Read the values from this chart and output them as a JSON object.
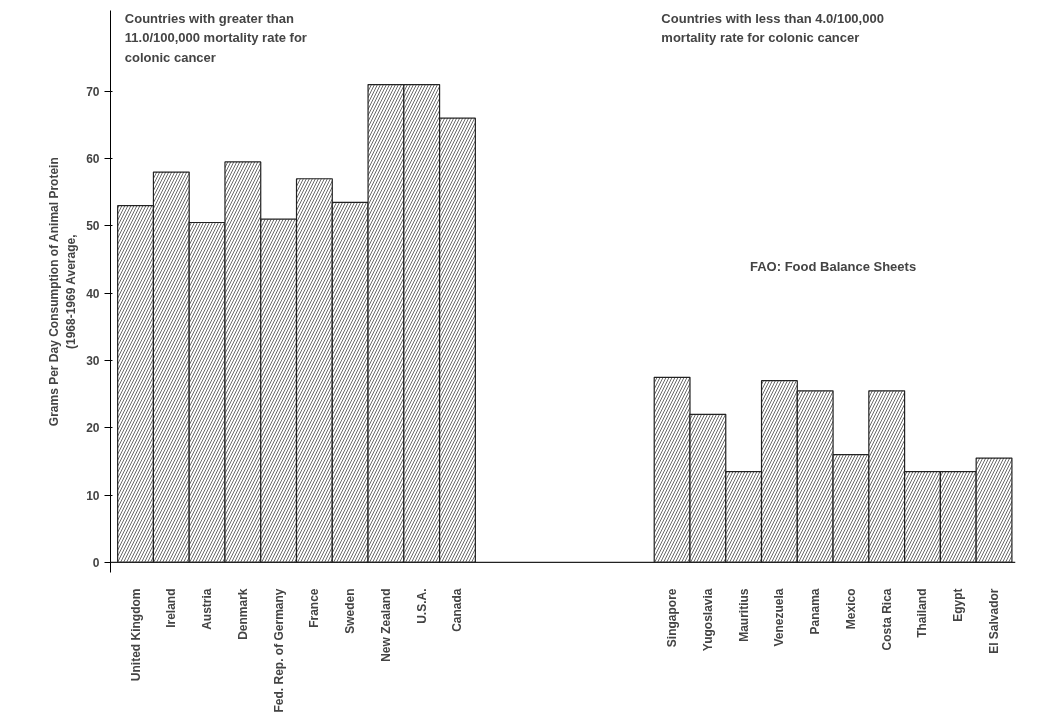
{
  "chart_data": {
    "type": "bar",
    "ylabel": "Grams Per Day Consumption of Animal Protein\n(1968-1969 Average,",
    "categories": [
      "United Kingdom",
      "Ireland",
      "Austria",
      "Denmark",
      "Fed. Rep. of Germany",
      "France",
      "Sweden",
      "New Zealand",
      "U.S.A.",
      "Canada",
      null,
      null,
      null,
      null,
      null,
      "Singapore",
      "Yugoslavia",
      "Mauritius",
      "Venezuela",
      "Panama",
      "Mexico",
      "Costa Rica",
      "Thailand",
      "Egypt",
      "El Salvador"
    ],
    "values": [
      53,
      58,
      50.5,
      59.5,
      51,
      57,
      53.5,
      71,
      71,
      66,
      null,
      null,
      null,
      null,
      null,
      27.5,
      22,
      13.5,
      27,
      25.5,
      16,
      25.5,
      13.5,
      13.5,
      15.5
    ],
    "color": "#ffffff",
    "ylim": [
      -1.5,
      82
    ],
    "yticks": [
      0,
      10,
      20,
      30,
      40,
      50,
      60,
      70
    ],
    "grid": false,
    "annotations": [
      "Countries with greater than\n11.0/100,000 mortality rate for\ncolonic cancer",
      "Countries with less than 4.0/100,000\nmortality rate for colonic cancer",
      "FAO: Food Balance Sheets"
    ]
  }
}
